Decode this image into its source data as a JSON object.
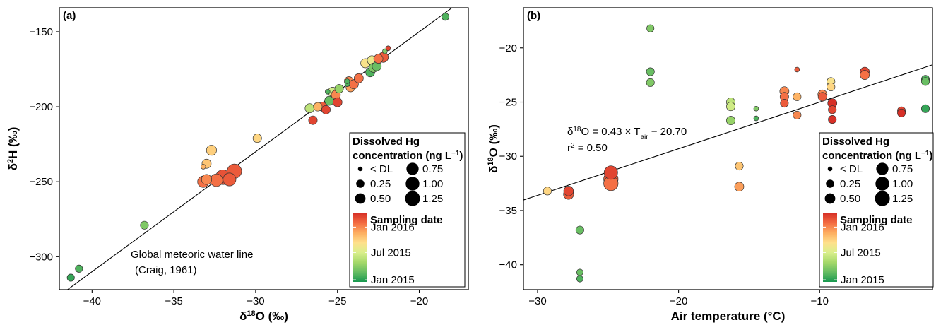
{
  "colors": {
    "date_scale": [
      "#1a9850",
      "#66bd63",
      "#a6d96a",
      "#d9ef8b",
      "#fee08b",
      "#fdae61",
      "#f46d43",
      "#d73027"
    ],
    "point_stroke": "#333333",
    "line": "#000000"
  },
  "chart_data": [
    {
      "panel_label": "(a)",
      "type": "scatter",
      "x_label": "δ18O (‰)",
      "y_label": "δ2H (‰)",
      "xlim": [
        -42,
        -17
      ],
      "ylim": [
        -322,
        -134
      ],
      "xticks": [
        -40,
        -35,
        -30,
        -25,
        -20
      ],
      "yticks": [
        -300,
        -250,
        -200,
        -150
      ],
      "tick_labels_x": [
        "−40",
        "−35",
        "−30",
        "−25",
        "−20"
      ],
      "tick_labels_y": [
        "−300",
        "−250",
        "−200",
        "−150"
      ],
      "line": {
        "name": "Global meteoric water line",
        "slope": 8,
        "intercept": 10
      },
      "annotation": [
        "Global meteoric water line",
        "(Craig, 1961)"
      ],
      "points": [
        {
          "x": -41.3,
          "y": -314,
          "hg": 0.15,
          "t": 0.05
        },
        {
          "x": -40.8,
          "y": -308,
          "hg": 0.15,
          "t": 0.1
        },
        {
          "x": -36.8,
          "y": -279,
          "hg": 0.2,
          "t": 0.2
        },
        {
          "x": -33.2,
          "y": -250,
          "hg": 0.55,
          "t": 0.85
        },
        {
          "x": -33.0,
          "y": -248.5,
          "hg": 0.4,
          "t": 0.8
        },
        {
          "x": -33.0,
          "y": -238,
          "hg": 0.3,
          "t": 0.65
        },
        {
          "x": -33.2,
          "y": -240,
          "hg": 0.03,
          "t": 0.7
        },
        {
          "x": -32.7,
          "y": -229,
          "hg": 0.4,
          "t": 0.62
        },
        {
          "x": -32.4,
          "y": -249,
          "hg": 0.7,
          "t": 0.85
        },
        {
          "x": -32.0,
          "y": -247,
          "hg": 1.05,
          "t": 0.92
        },
        {
          "x": -31.6,
          "y": -248.5,
          "hg": 0.75,
          "t": 0.9
        },
        {
          "x": -31.3,
          "y": -243,
          "hg": 1.0,
          "t": 0.9
        },
        {
          "x": -29.9,
          "y": -221,
          "hg": 0.25,
          "t": 0.6
        },
        {
          "x": -26.7,
          "y": -201,
          "hg": 0.3,
          "t": 0.35
        },
        {
          "x": -26.5,
          "y": -209,
          "hg": 0.25,
          "t": 0.95
        },
        {
          "x": -26.2,
          "y": -200,
          "hg": 0.25,
          "t": 0.7
        },
        {
          "x": -25.9,
          "y": -200,
          "hg": 0.3,
          "t": 0.9
        },
        {
          "x": -25.7,
          "y": -202,
          "hg": 0.25,
          "t": 0.95
        },
        {
          "x": -25.5,
          "y": -196,
          "hg": 0.3,
          "t": 0.15
        },
        {
          "x": -25.6,
          "y": -190,
          "hg": 0.03,
          "t": 0.1
        },
        {
          "x": -25.3,
          "y": -190,
          "hg": 0.3,
          "t": 0.4
        },
        {
          "x": -25.1,
          "y": -192,
          "hg": 0.3,
          "t": 0.8
        },
        {
          "x": -25.0,
          "y": -197,
          "hg": 0.3,
          "t": 0.95
        },
        {
          "x": -24.9,
          "y": -188,
          "hg": 0.25,
          "t": 0.25
        },
        {
          "x": -24.3,
          "y": -183,
          "hg": 0.3,
          "t": 0.8
        },
        {
          "x": -24.2,
          "y": -187,
          "hg": 0.3,
          "t": 0.75
        },
        {
          "x": -24.4,
          "y": -185,
          "hg": 0.03,
          "t": 0.1
        },
        {
          "x": -24.4,
          "y": -183,
          "hg": 0.03,
          "t": 0.1
        },
        {
          "x": -24.0,
          "y": -185,
          "hg": 0.3,
          "t": 0.85
        },
        {
          "x": -23.7,
          "y": -181,
          "hg": 0.3,
          "t": 0.85
        },
        {
          "x": -23.3,
          "y": -171,
          "hg": 0.3,
          "t": 0.55
        },
        {
          "x": -23.0,
          "y": -177,
          "hg": 0.3,
          "t": 0.1
        },
        {
          "x": -22.9,
          "y": -169,
          "hg": 0.3,
          "t": 0.5
        },
        {
          "x": -22.8,
          "y": -174,
          "hg": 0.3,
          "t": 0.2
        },
        {
          "x": -22.6,
          "y": -173,
          "hg": 0.3,
          "t": 0.15
        },
        {
          "x": -22.5,
          "y": -168,
          "hg": 0.3,
          "t": 0.85
        },
        {
          "x": -22.2,
          "y": -167,
          "hg": 0.4,
          "t": 0.9
        },
        {
          "x": -22.1,
          "y": -163,
          "hg": 0.03,
          "t": 0.2
        },
        {
          "x": -21.9,
          "y": -161,
          "hg": 0.03,
          "t": 0.95
        },
        {
          "x": -18.4,
          "y": -140,
          "hg": 0.15,
          "t": 0.1
        }
      ]
    },
    {
      "panel_label": "(b)",
      "type": "scatter",
      "x_label": "Air temperature (°C)",
      "y_label": "δ18O (‰)",
      "xlim": [
        -31,
        -2
      ],
      "ylim": [
        -42.3,
        -16.3
      ],
      "xticks": [
        -30,
        -20,
        -10
      ],
      "yticks": [
        -40,
        -35,
        -30,
        -25,
        -20
      ],
      "tick_labels_x": [
        "−30",
        "−20",
        "−10"
      ],
      "tick_labels_y": [
        "−40",
        "−35",
        "−30",
        "−25",
        "−20"
      ],
      "line": {
        "name": "δ18O = 0.43 × Tair − 20.70",
        "slope": 0.43,
        "intercept": -20.7
      },
      "annotation": [
        "δ18O = 0.43 × Tair − 20.70",
        "r2 = 0.50"
      ],
      "points": [
        {
          "x": -29.3,
          "y": -33.2,
          "hg": 0.2,
          "t": 0.6
        },
        {
          "x": -27.8,
          "y": -33.2,
          "hg": 0.35,
          "t": 0.95
        },
        {
          "x": -27.8,
          "y": -33.5,
          "hg": 0.4,
          "t": 0.9
        },
        {
          "x": -27.0,
          "y": -36.8,
          "hg": 0.2,
          "t": 0.15
        },
        {
          "x": -27.0,
          "y": -40.7,
          "hg": 0.1,
          "t": 0.15
        },
        {
          "x": -27.0,
          "y": -41.3,
          "hg": 0.1,
          "t": 0.1
        },
        {
          "x": -24.8,
          "y": -31.5,
          "hg": 0.85,
          "t": 0.95
        },
        {
          "x": -24.8,
          "y": -32.1,
          "hg": 1.0,
          "t": 0.9
        },
        {
          "x": -24.8,
          "y": -32.5,
          "hg": 1.0,
          "t": 0.85
        },
        {
          "x": -22.0,
          "y": -18.2,
          "hg": 0.15,
          "t": 0.2
        },
        {
          "x": -22.0,
          "y": -22.2,
          "hg": 0.2,
          "t": 0.15
        },
        {
          "x": -22.0,
          "y": -23.2,
          "hg": 0.2,
          "t": 0.2
        },
        {
          "x": -16.3,
          "y": -25.0,
          "hg": 0.25,
          "t": 0.35
        },
        {
          "x": -16.3,
          "y": -25.4,
          "hg": 0.25,
          "t": 0.4
        },
        {
          "x": -16.3,
          "y": -26.7,
          "hg": 0.25,
          "t": 0.25
        },
        {
          "x": -15.7,
          "y": -30.9,
          "hg": 0.2,
          "t": 0.65
        },
        {
          "x": -15.7,
          "y": -32.8,
          "hg": 0.3,
          "t": 0.75
        },
        {
          "x": -14.5,
          "y": -25.6,
          "hg": 0.03,
          "t": 0.2
        },
        {
          "x": -14.5,
          "y": -26.5,
          "hg": 0.03,
          "t": 0.1
        },
        {
          "x": -12.5,
          "y": -24.0,
          "hg": 0.3,
          "t": 0.8
        },
        {
          "x": -12.5,
          "y": -24.5,
          "hg": 0.25,
          "t": 0.85
        },
        {
          "x": -12.5,
          "y": -25.1,
          "hg": 0.2,
          "t": 0.9
        },
        {
          "x": -11.6,
          "y": -22.0,
          "hg": 0.03,
          "t": 0.9
        },
        {
          "x": -11.6,
          "y": -24.5,
          "hg": 0.2,
          "t": 0.7
        },
        {
          "x": -11.6,
          "y": -26.2,
          "hg": 0.2,
          "t": 0.8
        },
        {
          "x": -9.8,
          "y": -24.3,
          "hg": 0.3,
          "t": 0.8
        },
        {
          "x": -9.8,
          "y": -24.5,
          "hg": 0.25,
          "t": 0.9
        },
        {
          "x": -9.2,
          "y": -23.1,
          "hg": 0.2,
          "t": 0.55
        },
        {
          "x": -9.2,
          "y": -23.6,
          "hg": 0.2,
          "t": 0.6
        },
        {
          "x": -9.1,
          "y": -25.1,
          "hg": 0.3,
          "t": 1.0
        },
        {
          "x": -9.1,
          "y": -25.7,
          "hg": 0.2,
          "t": 0.95
        },
        {
          "x": -9.1,
          "y": -26.6,
          "hg": 0.2,
          "t": 1.0
        },
        {
          "x": -6.8,
          "y": -22.2,
          "hg": 0.3,
          "t": 0.95
        },
        {
          "x": -6.8,
          "y": -22.5,
          "hg": 0.3,
          "t": 0.85
        },
        {
          "x": -4.2,
          "y": -25.8,
          "hg": 0.2,
          "t": 0.95
        },
        {
          "x": -4.2,
          "y": -26.0,
          "hg": 0.2,
          "t": 1.0
        },
        {
          "x": -2.5,
          "y": -22.9,
          "hg": 0.2,
          "t": 0.1
        },
        {
          "x": -2.5,
          "y": -23.1,
          "hg": 0.2,
          "t": 0.15
        },
        {
          "x": -2.5,
          "y": -25.6,
          "hg": 0.2,
          "t": 0.05
        }
      ]
    }
  ],
  "legend": {
    "size_title_1": "Dissolved Hg",
    "size_title_2": "concentration (ng L",
    "size_entries": [
      {
        "label": "< DL",
        "hg": 0.03
      },
      {
        "label": "0.75",
        "hg": 0.75
      },
      {
        "label": "0.25",
        "hg": 0.25
      },
      {
        "label": "1.00",
        "hg": 1.0
      },
      {
        "label": "0.50",
        "hg": 0.5
      },
      {
        "label": "1.25",
        "hg": 1.25
      }
    ],
    "color_title": "Sampling date",
    "color_labels": [
      {
        "label": "Jan  2016",
        "t": 0.8
      },
      {
        "label": "Jul  2015",
        "t": 0.43
      },
      {
        "label": "Jan  2015",
        "t": 0.03
      }
    ]
  }
}
